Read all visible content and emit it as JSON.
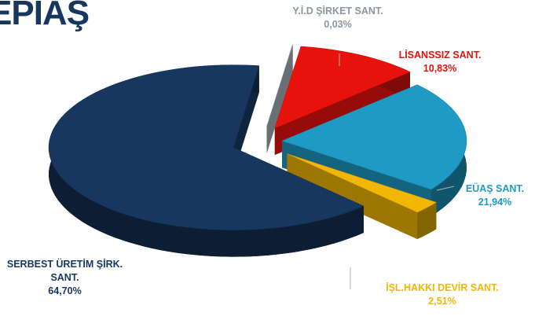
{
  "logo": "EPIAŞ",
  "chart_data": {
    "type": "pie",
    "categories": [
      "Y.İ.D  ŞİRKET SANT.",
      "LİSANSSIZ SANT.",
      "EÜAŞ SANT.",
      "İŞL.HAKKI DEVİR SANT.",
      "SERBEST ÜRETİM ŞİRK. SANT."
    ],
    "values": [
      0.03,
      10.83,
      21.94,
      2.51,
      64.7
    ],
    "value_labels": [
      "0,03%",
      "10,83%",
      "21,94%",
      "2,51%",
      "64,70%"
    ],
    "colors": [
      "#a3abb4",
      "#e8120c",
      "#1f9ac4",
      "#f2b705",
      "#17375e"
    ],
    "label_colors": [
      "#8c96a0",
      "#e3120b",
      "#1f9ac4",
      "#f2b705",
      "#17375e"
    ]
  }
}
